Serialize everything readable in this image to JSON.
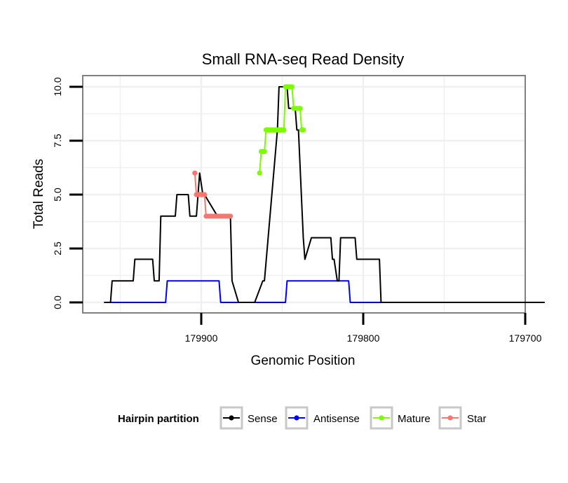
{
  "chart_data": {
    "type": "line",
    "title": "Small RNA-seq Read Density",
    "xlabel": "Genomic Position",
    "ylabel": "Total Reads",
    "x_reversed": true,
    "xlim": [
      179962,
      179700
    ],
    "ylim": [
      -0.4,
      10.4
    ],
    "x_ticks": [
      179900,
      179800,
      179700
    ],
    "x_tick_labels": [
      "179900",
      "179800",
      "179700"
    ],
    "y_ticks": [
      0,
      2.5,
      5,
      7.5,
      10
    ],
    "y_tick_labels": [
      "0.0",
      "2.5",
      "5.0",
      "7.5",
      "10.0"
    ],
    "grid": true,
    "legend": {
      "title": "Hairpin partition",
      "position": "bottom",
      "entries": [
        "Sense",
        "Antisense",
        "Mature",
        "Star"
      ]
    },
    "series": [
      {
        "name": "Sense",
        "color": "#000000",
        "marker": "none",
        "x": [
          179960,
          179956,
          179955,
          179942,
          179941,
          179931,
          179930,
          179929,
          179926,
          179925,
          179916,
          179915,
          179908,
          179907,
          179904,
          179903,
          179901,
          179899,
          179898,
          179890,
          179889,
          179882,
          179881,
          179877,
          179876,
          179867,
          179862,
          179861,
          179853,
          179852,
          179847,
          179846,
          179842,
          179841,
          179840,
          179837,
          179836,
          179836,
          179832,
          179830,
          179829,
          179820,
          179819,
          179818,
          179816,
          179815,
          179814,
          179805,
          179804,
          179790,
          179789,
          179688
        ],
        "y": [
          0,
          0,
          1,
          1,
          2,
          2,
          2,
          1,
          1,
          4,
          4,
          5,
          5,
          4,
          4,
          4,
          6,
          5,
          5,
          4,
          4,
          4,
          1,
          0,
          0,
          0,
          1,
          1,
          8,
          10,
          10,
          9,
          9,
          8,
          8,
          3,
          2,
          2,
          3,
          3,
          3,
          3,
          2,
          2,
          1,
          1,
          3,
          3,
          2,
          2,
          0,
          0
        ]
      },
      {
        "name": "Antisense",
        "color": "#0000ff",
        "marker": "none",
        "x": [
          179960,
          179922,
          179921,
          179889,
          179888,
          179870,
          179869,
          179848,
          179847,
          179809,
          179808,
          179688
        ],
        "y": [
          0,
          0,
          1,
          1,
          0,
          0,
          0,
          0,
          1,
          1,
          0,
          0
        ]
      },
      {
        "name": "Mature",
        "color": "#7cfc00",
        "marker": "dot",
        "x": [
          179864,
          179863,
          179862,
          179861,
          179860,
          179859,
          179858,
          179857,
          179856,
          179855,
          179854,
          179853,
          179852,
          179851,
          179850,
          179849,
          179848,
          179847,
          179846,
          179845,
          179844,
          179843,
          179842,
          179841,
          179840,
          179839,
          179838,
          179837
        ],
        "y": [
          6,
          7,
          7,
          7,
          8,
          8,
          8,
          8,
          8,
          8,
          8,
          8,
          8,
          8,
          8,
          8,
          10,
          10,
          10,
          10,
          10,
          9,
          9,
          9,
          9,
          9,
          8,
          8
        ]
      },
      {
        "name": "Star",
        "color": "#f8766d",
        "marker": "dot",
        "x": [
          179904,
          179903,
          179902,
          179901,
          179900,
          179899,
          179898,
          179897,
          179896,
          179895,
          179894,
          179893,
          179892,
          179891,
          179890,
          179889,
          179888,
          179887,
          179886,
          179885,
          179884,
          179883,
          179882
        ],
        "y": [
          6,
          5,
          5,
          5,
          5,
          5,
          5,
          4,
          4,
          4,
          4,
          4,
          4,
          4,
          4,
          4,
          4,
          4,
          4,
          4,
          4,
          4,
          4
        ]
      }
    ]
  }
}
